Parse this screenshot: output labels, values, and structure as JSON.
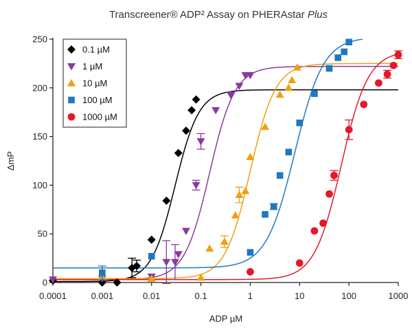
{
  "chart_data": {
    "type": "scatter",
    "title_main": "Transcreener® ADP² Assay on PHERAstar ",
    "title_italic": "Plus",
    "xlabel": "ADP µM",
    "ylabel": "ΔmP",
    "xscale": "log",
    "xlim": [
      0.0001,
      1000
    ],
    "ylim": [
      0,
      250
    ],
    "xticks": [
      0.0001,
      0.001,
      0.01,
      0.1,
      1,
      10,
      100,
      1000
    ],
    "xtick_labels": [
      "0.0001",
      "0.001",
      "0.01",
      "0.1",
      "1",
      "10",
      "100",
      "1000"
    ],
    "yticks": [
      0,
      50,
      100,
      150,
      200,
      250
    ],
    "ytick_labels": [
      "0",
      "50",
      "100",
      "150",
      "200",
      "250"
    ],
    "grid": false,
    "legend_position": "top-left",
    "series": [
      {
        "name": "0.1 µM",
        "color": "#000000",
        "marker": "diamond",
        "x": [
          0.0001,
          0.001,
          0.002,
          0.004,
          0.005,
          0.01,
          0.02,
          0.035,
          0.05,
          0.065,
          0.08
        ],
        "y": [
          2,
          0,
          0,
          15,
          17,
          44,
          84,
          133,
          156,
          177,
          188
        ],
        "err": [
          0,
          0,
          0,
          10,
          6,
          0,
          0,
          0,
          0,
          0,
          0
        ],
        "fit": {
          "bottom": 1,
          "top": 198,
          "ec50": 0.03,
          "hill": 1.8
        }
      },
      {
        "name": "1 µM",
        "color": "#8B3A9C",
        "marker": "triangle-down",
        "x": [
          0.0001,
          0.001,
          0.01,
          0.02,
          0.03,
          0.035,
          0.05,
          0.08,
          0.1,
          0.2,
          0.4,
          0.6,
          0.8,
          1
        ],
        "y": [
          3,
          4,
          6,
          21,
          21,
          29,
          53,
          100,
          145,
          177,
          193,
          202,
          213,
          213
        ],
        "err": [
          0,
          0,
          0,
          22,
          18,
          0,
          0,
          5,
          8,
          0,
          0,
          0,
          0,
          0
        ],
        "fit": {
          "bottom": 3,
          "top": 222,
          "ec50": 0.15,
          "hill": 1.7
        }
      },
      {
        "name": "10 µM",
        "color": "#F0A010",
        "marker": "triangle-up",
        "x": [
          0.001,
          0.01,
          0.1,
          0.15,
          0.3,
          0.5,
          0.6,
          0.8,
          1,
          2,
          4,
          6,
          7,
          9
        ],
        "y": [
          6,
          4,
          5,
          35,
          42,
          69,
          90,
          94,
          129,
          160,
          193,
          200,
          208,
          221
        ],
        "err": [
          0,
          0,
          0,
          0,
          6,
          0,
          8,
          0,
          0,
          0,
          0,
          0,
          0,
          0
        ],
        "fit": {
          "bottom": 4,
          "top": 225,
          "ec50": 1.0,
          "hill": 1.7
        }
      },
      {
        "name": "100 µM",
        "color": "#1F78C1",
        "marker": "square",
        "x": [
          0.001,
          0.01,
          1,
          2,
          3,
          4,
          6,
          10,
          20,
          40,
          60,
          80,
          100
        ],
        "y": [
          10,
          27,
          31,
          70,
          78,
          110,
          134,
          164,
          194,
          220,
          231,
          237,
          247
        ],
        "err": [
          7,
          0,
          0,
          0,
          3,
          0,
          0,
          0,
          0,
          0,
          0,
          0,
          0
        ],
        "fit": {
          "bottom": 15,
          "top": 252,
          "ec50": 8.0,
          "hill": 1.5
        }
      },
      {
        "name": "1000 µM",
        "color": "#E3192B",
        "marker": "circle",
        "x": [
          1,
          10,
          20,
          30,
          40,
          50,
          100,
          200,
          400,
          600,
          800,
          1000
        ],
        "y": [
          11,
          20,
          53,
          61,
          91,
          110,
          157,
          183,
          205,
          214,
          223,
          234
        ],
        "err": [
          0,
          0,
          0,
          0,
          0,
          5,
          10,
          0,
          0,
          4,
          0,
          4
        ],
        "fit": {
          "bottom": 3,
          "top": 238,
          "ec50": 70,
          "hill": 1.6
        }
      }
    ]
  }
}
